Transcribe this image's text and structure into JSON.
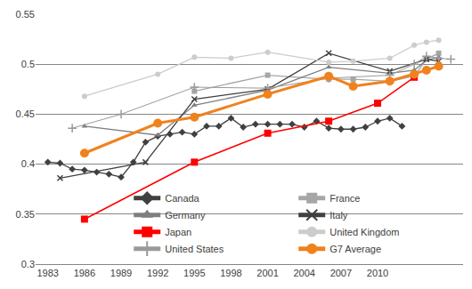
{
  "chart_data": {
    "type": "line",
    "xlim": [
      1982,
      2017
    ],
    "xticks": [
      1983,
      1986,
      1989,
      1992,
      1995,
      1998,
      2001,
      2004,
      2007,
      2010
    ],
    "ylim": [
      0.3,
      0.55
    ],
    "yticks": [
      0.3,
      0.35,
      0.4,
      0.45,
      0.5,
      0.55
    ],
    "grid": true,
    "legend": "bottom right",
    "series": [
      {
        "name": "Canada",
        "color": "#404040",
        "marker": "diamond",
        "line_style": "solid",
        "x": [
          1983,
          1984,
          1985,
          1986,
          1987,
          1988,
          1989,
          1990,
          1991,
          1992,
          1993,
          1994,
          1995,
          1996,
          1997,
          1998,
          1999,
          2000,
          2001,
          2002,
          2003,
          2004,
          2005,
          2006,
          2007,
          2008,
          2009,
          2010,
          2011,
          2012
        ],
        "values": [
          0.402,
          0.401,
          0.395,
          0.394,
          0.392,
          0.39,
          0.387,
          0.402,
          0.422,
          0.428,
          0.43,
          0.432,
          0.43,
          0.438,
          0.438,
          0.446,
          0.437,
          0.44,
          0.44,
          0.44,
          0.44,
          0.437,
          0.443,
          0.436,
          0.435,
          0.435,
          0.437,
          0.443,
          0.446,
          0.438
        ]
      },
      {
        "name": "France",
        "color": "#a6a6a6",
        "marker": "square",
        "line_style": "solid",
        "x": [
          1995,
          2001,
          2006,
          2008,
          2011,
          2013,
          2014,
          2015
        ],
        "values": [
          0.473,
          0.489,
          0.485,
          0.485,
          0.483,
          0.488,
          0.505,
          0.511
        ]
      },
      {
        "name": "Germany",
        "color": "#7f7f7f",
        "marker": "triangle",
        "line_style": "solid",
        "x": [
          1986,
          1992,
          1995,
          2001,
          2006,
          2011,
          2013,
          2014,
          2015
        ],
        "values": [
          0.438,
          0.429,
          0.459,
          0.474,
          0.497,
          0.491,
          0.494,
          0.504,
          0.507
        ]
      },
      {
        "name": "Italy",
        "color": "#404040",
        "marker": "x",
        "line_style": "solid",
        "x": [
          1984,
          1991,
          1995,
          2001,
          2006,
          2011,
          2014,
          2015
        ],
        "values": [
          0.386,
          0.402,
          0.465,
          0.475,
          0.511,
          0.493,
          0.505,
          0.503
        ]
      },
      {
        "name": "Japan",
        "color": "#ff0000",
        "marker": "square",
        "line_style": "medium",
        "x": [
          1986,
          1995,
          2001,
          2006,
          2010,
          2013
        ],
        "values": [
          0.345,
          0.402,
          0.431,
          0.443,
          0.461,
          0.487
        ]
      },
      {
        "name": "United Kingdom",
        "color": "#cccccc",
        "marker": "circle",
        "line_style": "solid",
        "x": [
          1986,
          1992,
          1995,
          1998,
          2001,
          2006,
          2008,
          2011,
          2013,
          2014,
          2015
        ],
        "values": [
          0.468,
          0.49,
          0.507,
          0.506,
          0.512,
          0.502,
          0.503,
          0.506,
          0.519,
          0.522,
          0.524
        ]
      },
      {
        "name": "United States",
        "color": "#9a9a9a",
        "marker": "plus",
        "line_style": "thin",
        "x": [
          1985,
          1989,
          1995,
          2001,
          2006,
          2011,
          2013,
          2014,
          2015,
          2016
        ],
        "values": [
          0.436,
          0.45,
          0.477,
          0.476,
          0.486,
          0.489,
          0.5,
          0.508,
          0.506,
          0.505
        ]
      },
      {
        "name": "G7 Average",
        "color": "#f0821e",
        "marker": "circle",
        "line_style": "thick",
        "x": [
          1986,
          1992,
          1995,
          2001,
          2006,
          2008,
          2011,
          2013,
          2014,
          2015
        ],
        "values": [
          0.411,
          0.441,
          0.447,
          0.47,
          0.488,
          0.478,
          0.483,
          0.49,
          0.494,
          0.498
        ]
      }
    ]
  }
}
